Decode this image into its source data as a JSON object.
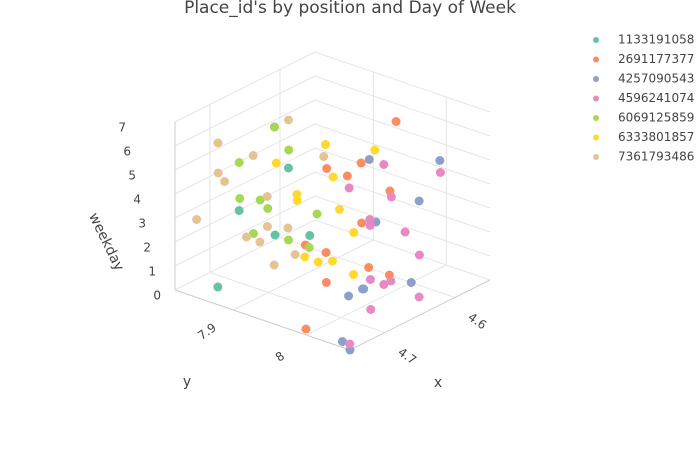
{
  "chart_data": {
    "type": "scatter3d",
    "title": "Place_id's by position and Day of Week",
    "xlabel": "x",
    "ylabel": "y",
    "zlabel": "weekday",
    "xlim": [
      4.55,
      4.75
    ],
    "ylim": [
      7.82,
      8.06
    ],
    "zlim": [
      0,
      7
    ],
    "xticks": [
      4.6,
      4.7
    ],
    "yticks": [
      7.9,
      8
    ],
    "zticks": [
      0,
      1,
      2,
      3,
      4,
      5,
      6,
      7
    ],
    "grid": true,
    "legend": "right",
    "series": [
      {
        "name": "1133191058",
        "color": "#66c2a5",
        "x": [
          4.66,
          4.62,
          4.7,
          4.68,
          4.64,
          4.72
        ],
        "y": [
          7.87,
          7.88,
          7.86,
          7.89,
          7.87,
          7.85
        ],
        "z": [
          6,
          1,
          3,
          2,
          4,
          0
        ]
      },
      {
        "name": "2691177377",
        "color": "#fc8d62",
        "x": [
          4.6,
          4.64,
          4.68,
          4.72,
          4.62,
          4.66,
          4.7,
          4.58,
          4.74,
          4.65,
          4.69,
          4.63
        ],
        "y": [
          7.97,
          7.98,
          7.96,
          7.97,
          7.99,
          7.97,
          7.98,
          7.96,
          7.99,
          7.98,
          7.97,
          7.96
        ],
        "z": [
          0,
          1,
          2,
          3,
          4,
          5,
          6,
          6,
          0,
          3,
          1,
          5
        ]
      },
      {
        "name": "4257090543",
        "color": "#8da0cb",
        "x": [
          4.6,
          4.7,
          4.74,
          4.64,
          4.58,
          4.72,
          4.66,
          4.62,
          4.68,
          4.75
        ],
        "y": [
          8.0,
          8.01,
          8.04,
          7.99,
          8.02,
          8.05,
          8.0,
          8.03,
          8.01,
          8.06
        ],
        "z": [
          0,
          1,
          0,
          3,
          5,
          2,
          6,
          4,
          1,
          0
        ]
      },
      {
        "name": "4596241074",
        "color": "#e78ac3",
        "x": [
          4.62,
          4.66,
          4.7,
          4.64,
          4.68,
          4.6,
          4.72,
          4.66,
          4.63,
          4.69,
          4.65,
          4.67,
          4.74,
          4.71
        ],
        "y": [
          8.03,
          8.02,
          8.04,
          8.03,
          8.02,
          8.04,
          8.03,
          8.02,
          8.04,
          8.03,
          8.02,
          8.04,
          8.05,
          8.05
        ],
        "z": [
          0,
          1,
          2,
          3,
          4,
          5,
          6,
          6,
          2,
          4,
          1,
          5,
          0,
          1
        ]
      },
      {
        "name": "6069125859",
        "color": "#a6d854",
        "x": [
          4.64,
          4.68,
          4.7,
          4.62,
          4.66,
          4.72,
          4.6,
          4.69,
          4.65,
          4.67
        ],
        "y": [
          7.87,
          7.88,
          7.86,
          7.89,
          7.87,
          7.88,
          7.86,
          7.87,
          7.88,
          7.86
        ],
        "z": [
          1,
          3,
          5,
          2,
          6,
          4,
          0,
          2,
          5,
          3
        ]
      },
      {
        "name": "6333801857",
        "color": "#ffd92f",
        "x": [
          4.62,
          4.66,
          4.7,
          4.64,
          4.68,
          4.6,
          4.72,
          4.66,
          4.63,
          4.69,
          4.65,
          4.67
        ],
        "y": [
          7.94,
          7.93,
          7.95,
          7.94,
          7.92,
          7.95,
          7.93,
          7.94,
          7.95,
          7.93,
          7.94,
          7.96
        ],
        "z": [
          0,
          1,
          2,
          3,
          4,
          5,
          6,
          6,
          2,
          4,
          1,
          5
        ]
      },
      {
        "name": "7361793486",
        "color": "#e5c494",
        "x": [
          4.62,
          4.66,
          4.7,
          4.74,
          4.6,
          4.68,
          4.72,
          4.64,
          4.66,
          4.7,
          4.62,
          4.67,
          4.73,
          4.65
        ],
        "y": [
          7.86,
          7.85,
          7.87,
          7.84,
          7.88,
          7.86,
          7.85,
          7.87,
          7.86,
          7.84,
          7.85,
          7.87,
          7.86,
          7.86
        ],
        "z": [
          0,
          1,
          2,
          3,
          4,
          5,
          6,
          6,
          3,
          4,
          1,
          2,
          5,
          0
        ]
      }
    ]
  }
}
